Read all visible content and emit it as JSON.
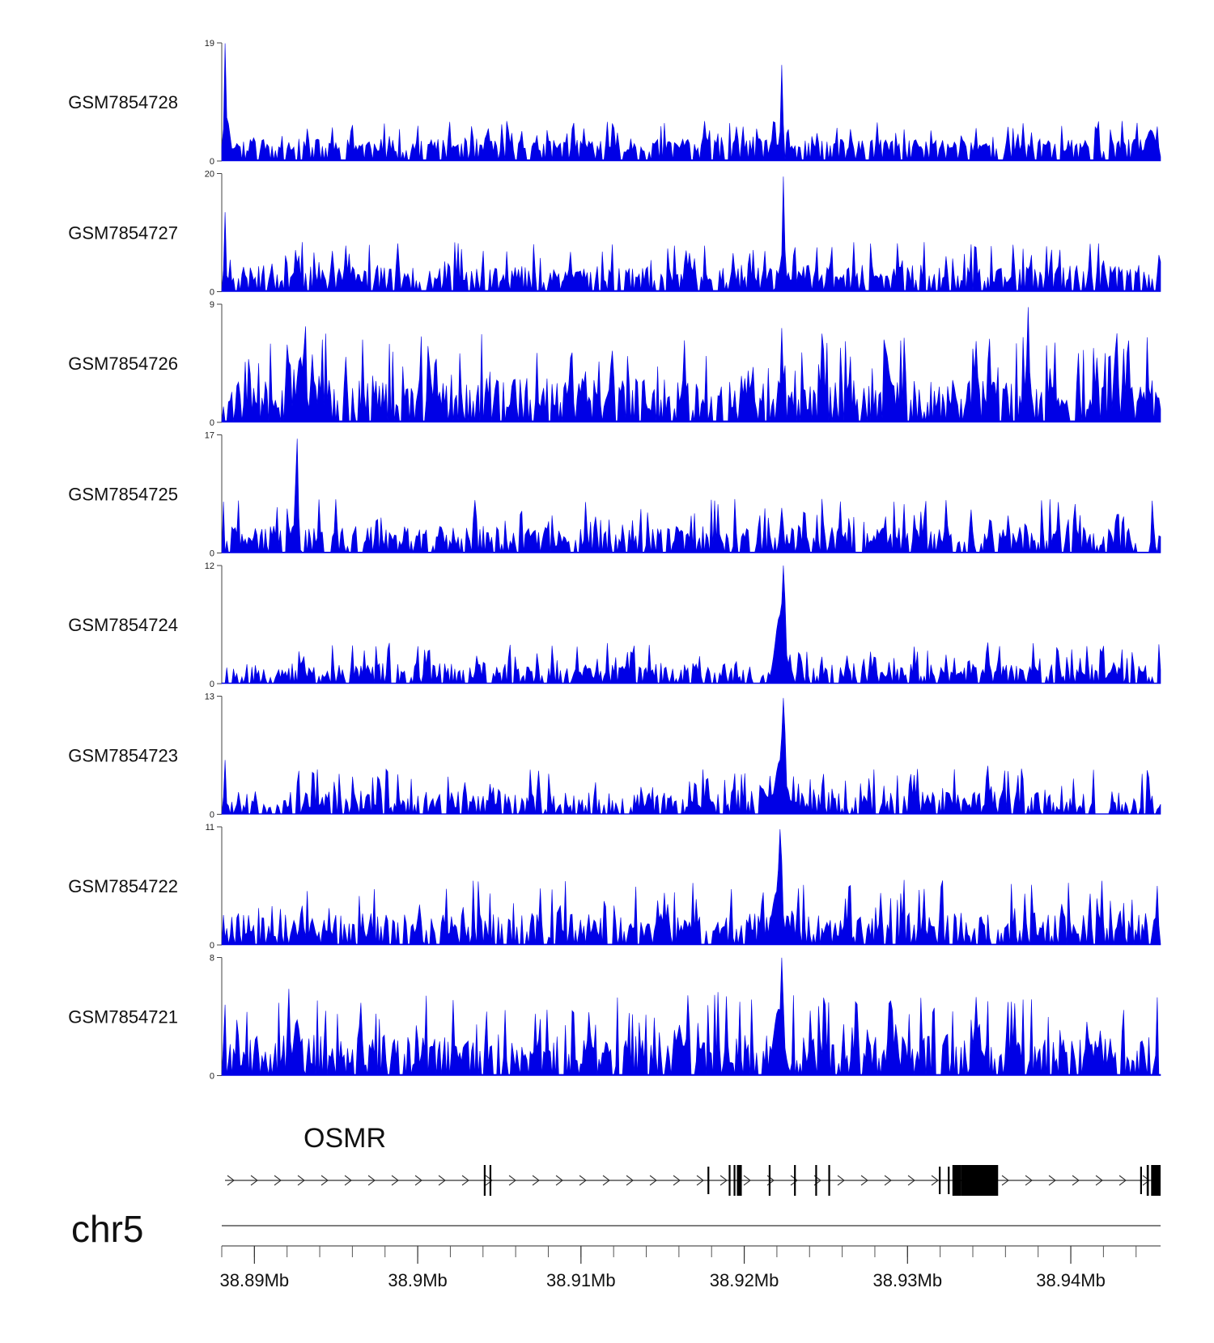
{
  "chart_data": {
    "type": "area",
    "title": "",
    "xlabel": "",
    "ylabel": "",
    "color": "#0000e6",
    "chromosome": "chr5",
    "x_range_mb": [
      38.888,
      38.9455
    ],
    "x_ticks": [
      {
        "value": 38.89,
        "label": "38.89Mb"
      },
      {
        "value": 38.9,
        "label": "38.9Mb"
      },
      {
        "value": 38.91,
        "label": "38.91Mb"
      },
      {
        "value": 38.92,
        "label": "38.92Mb"
      },
      {
        "value": 38.93,
        "label": "38.93Mb"
      },
      {
        "value": 38.94,
        "label": "38.94Mb"
      }
    ],
    "tracks": [
      {
        "name": "GSM7854728",
        "ymin": 0,
        "ymax": 19,
        "ymax_label": "19",
        "ymin_label": "0",
        "seed": 11,
        "base": 1.4,
        "noise": 2.2,
        "peaks": [
          {
            "x": 38.8882,
            "h": 19,
            "w": 6e-05
          },
          {
            "x": 38.8883,
            "h": 7,
            "w": 0.0002
          },
          {
            "x": 38.9223,
            "h": 15.5,
            "w": 7e-05
          },
          {
            "x": 38.9218,
            "h": 4,
            "w": 0.0002
          },
          {
            "x": 38.9449,
            "h": 5,
            "w": 0.0003
          }
        ]
      },
      {
        "name": "GSM7854727",
        "ymin": 0,
        "ymax": 20,
        "ymax_label": "20",
        "ymin_label": "0",
        "seed": 23,
        "base": 1.5,
        "noise": 3.0,
        "peaks": [
          {
            "x": 38.8882,
            "h": 13.5,
            "w": 6e-05
          },
          {
            "x": 38.9224,
            "h": 19.5,
            "w": 7e-05
          },
          {
            "x": 38.9223,
            "h": 5,
            "w": 0.0002
          }
        ]
      },
      {
        "name": "GSM7854726",
        "ymin": 0,
        "ymax": 9,
        "ymax_label": "9",
        "ymin_label": "0",
        "seed": 37,
        "base": 0.8,
        "noise": 2.6,
        "peaks": [
          {
            "x": 38.8931,
            "h": 8,
            "w": 8e-05
          },
          {
            "x": 38.8928,
            "h": 5,
            "w": 0.0002
          },
          {
            "x": 38.9011,
            "h": 5.3,
            "w": 0.0001
          },
          {
            "x": 38.9094,
            "h": 5.4,
            "w": 0.0001
          },
          {
            "x": 38.9223,
            "h": 7.2,
            "w": 8e-05
          },
          {
            "x": 38.9287,
            "h": 6.1,
            "w": 0.0001
          },
          {
            "x": 38.9342,
            "h": 6.2,
            "w": 0.0001
          },
          {
            "x": 38.935,
            "h": 6.2,
            "w": 0.0001
          },
          {
            "x": 38.9374,
            "h": 8.9,
            "w": 7e-05
          },
          {
            "x": 38.9428,
            "h": 7.1,
            "w": 0.0001
          },
          {
            "x": 38.9435,
            "h": 6.1,
            "w": 0.0001
          }
        ]
      },
      {
        "name": "GSM7854725",
        "ymin": 0,
        "ymax": 17,
        "ymax_label": "17",
        "ymin_label": "0",
        "seed": 41,
        "base": 0.9,
        "noise": 3.0,
        "peaks": [
          {
            "x": 38.8926,
            "h": 17,
            "w": 8e-05
          },
          {
            "x": 38.8924,
            "h": 4,
            "w": 0.0002
          },
          {
            "x": 38.9223,
            "h": 6.5,
            "w": 0.0001
          },
          {
            "x": 38.9428,
            "h": 5.8,
            "w": 0.0001
          }
        ]
      },
      {
        "name": "GSM7854724",
        "ymin": 0,
        "ymax": 12,
        "ymax_label": "12",
        "ymin_label": "0",
        "seed": 53,
        "base": 0.5,
        "noise": 1.6,
        "peaks": [
          {
            "x": 38.9224,
            "h": 12,
            "w": 0.00012
          },
          {
            "x": 38.9222,
            "h": 7,
            "w": 0.0003
          },
          {
            "x": 38.9131,
            "h": 3.6,
            "w": 0.0001
          },
          {
            "x": 38.9349,
            "h": 4.3,
            "w": 0.0001
          },
          {
            "x": 38.893,
            "h": 2.9,
            "w": 0.0001
          }
        ]
      },
      {
        "name": "GSM7854723",
        "ymin": 0,
        "ymax": 13,
        "ymax_label": "13",
        "ymin_label": "0",
        "seed": 67,
        "base": 0.5,
        "noise": 2.0,
        "peaks": [
          {
            "x": 38.9224,
            "h": 12.8,
            "w": 0.00012
          },
          {
            "x": 38.9222,
            "h": 6,
            "w": 0.0003
          },
          {
            "x": 38.8882,
            "h": 6,
            "w": 6e-05
          },
          {
            "x": 38.9349,
            "h": 5.5,
            "w": 0.0001
          },
          {
            "x": 38.917,
            "h": 3.8,
            "w": 0.0001
          }
        ]
      },
      {
        "name": "GSM7854722",
        "ymin": 0,
        "ymax": 11,
        "ymax_label": "11",
        "ymin_label": "0",
        "seed": 79,
        "base": 0.6,
        "noise": 2.4,
        "peaks": [
          {
            "x": 38.9222,
            "h": 10.8,
            "w": 0.00012
          },
          {
            "x": 38.922,
            "h": 5,
            "w": 0.0003
          },
          {
            "x": 38.8929,
            "h": 3.8,
            "w": 0.0001
          },
          {
            "x": 38.9001,
            "h": 3.8,
            "w": 0.0001
          },
          {
            "x": 38.9087,
            "h": 4.0,
            "w": 0.0001
          },
          {
            "x": 38.943,
            "h": 3.4,
            "w": 0.0001
          }
        ]
      },
      {
        "name": "GSM7854721",
        "ymin": 0,
        "ymax": 8,
        "ymax_label": "8",
        "ymin_label": "0",
        "seed": 89,
        "base": 0.6,
        "noise": 2.2,
        "peaks": [
          {
            "x": 38.8921,
            "h": 5.9,
            "w": 8e-05
          },
          {
            "x": 38.8926,
            "h": 3.8,
            "w": 0.0002
          },
          {
            "x": 38.9223,
            "h": 8,
            "w": 0.0001
          },
          {
            "x": 38.9221,
            "h": 4.5,
            "w": 0.0003
          },
          {
            "x": 38.916,
            "h": 3.6,
            "w": 0.0001
          },
          {
            "x": 38.9342,
            "h": 3.6,
            "w": 0.0002
          },
          {
            "x": 38.941,
            "h": 3.7,
            "w": 0.0001
          }
        ]
      }
    ],
    "gene": {
      "name": "OSMR",
      "strand": "+",
      "start": 38.8882,
      "end": 38.9455,
      "exons": [
        {
          "start": 38.90405,
          "end": 38.90415,
          "thick": true
        },
        {
          "start": 38.9044,
          "end": 38.9045,
          "thick": true
        },
        {
          "start": 38.91775,
          "end": 38.91782,
          "thick": false
        },
        {
          "start": 38.91905,
          "end": 38.91915,
          "thick": true
        },
        {
          "start": 38.91935,
          "end": 38.91945,
          "thick": true
        },
        {
          "start": 38.91955,
          "end": 38.91985,
          "thick": true
        },
        {
          "start": 38.9215,
          "end": 38.9216,
          "thick": true
        },
        {
          "start": 38.92305,
          "end": 38.92313,
          "thick": true
        },
        {
          "start": 38.92435,
          "end": 38.92445,
          "thick": true
        },
        {
          "start": 38.92515,
          "end": 38.92525,
          "thick": true
        },
        {
          "start": 38.93192,
          "end": 38.93199,
          "thick": false
        },
        {
          "start": 38.93247,
          "end": 38.93254,
          "thick": false
        },
        {
          "start": 38.93275,
          "end": 38.9333,
          "thick": true
        },
        {
          "start": 38.9333,
          "end": 38.93555,
          "thick": true
        },
        {
          "start": 38.94425,
          "end": 38.94432,
          "thick": false
        },
        {
          "start": 38.94465,
          "end": 38.94478,
          "thick": true
        },
        {
          "start": 38.94492,
          "end": 38.9455,
          "thick": true
        }
      ]
    }
  }
}
